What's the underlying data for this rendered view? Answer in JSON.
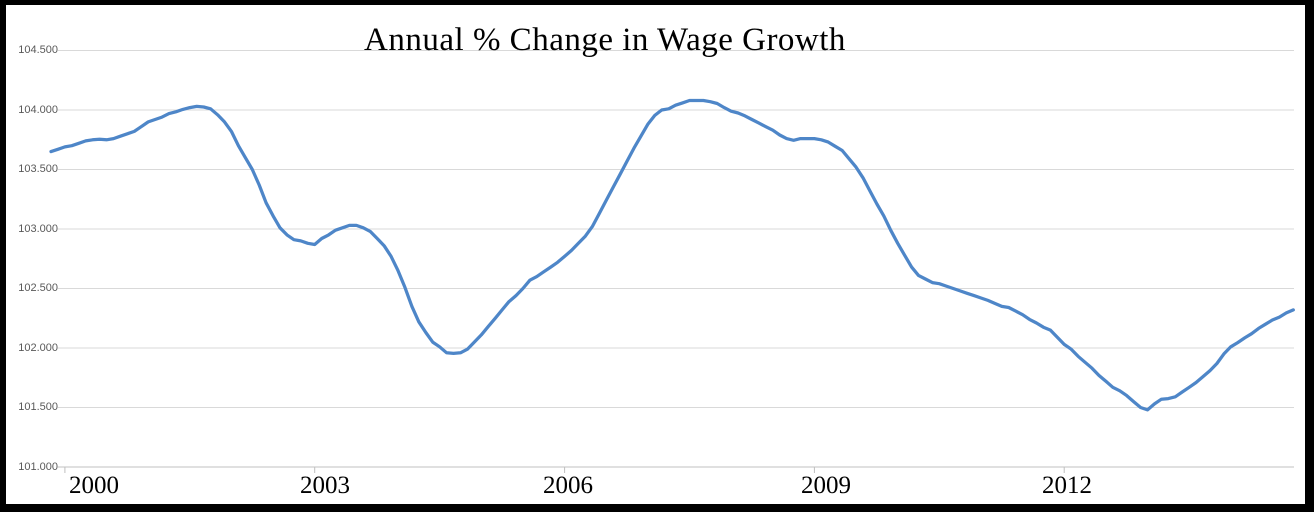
{
  "title": "Annual % Change in Wage Growth",
  "y_axis": {
    "tick_labels": [
      "104.500",
      "104.000",
      "103.500",
      "103.000",
      "102.500",
      "102.000",
      "101.500",
      "101.000"
    ],
    "min": 101.0,
    "max": 104.5,
    "step": 0.5
  },
  "x_axis": {
    "tick_labels": [
      "2000",
      "2003",
      "2006",
      "2009",
      "2012"
    ]
  },
  "colors": {
    "line": "#4E86C8",
    "gridline": "#D9D9D9",
    "axis_line": "#C0C0C0",
    "tick_mark": "#BFBFBF",
    "y_label_text": "#595959",
    "x_label_text": "#000000",
    "title_text": "#000000",
    "frame": "#000000",
    "background": "#FFFFFF"
  },
  "chart_data": {
    "type": "line",
    "title": "Annual % Change in Wage Growth",
    "xlabel": "",
    "ylabel": "",
    "ylim": [
      101.0,
      104.5
    ],
    "x_tick_labels": [
      "2000",
      "2003",
      "2006",
      "2009",
      "2012"
    ],
    "frequency": "monthly",
    "x_start": "1999-11",
    "x_end": "2014-10",
    "grid": true,
    "legend": false,
    "values": [
      103.65,
      103.67,
      103.69,
      103.7,
      103.72,
      103.74,
      103.75,
      103.755,
      103.75,
      103.76,
      103.78,
      103.8,
      103.82,
      103.86,
      103.9,
      103.92,
      103.94,
      103.97,
      103.985,
      104.005,
      104.02,
      104.03,
      104.025,
      104.01,
      103.96,
      103.9,
      103.82,
      103.7,
      103.6,
      103.5,
      103.37,
      103.22,
      103.11,
      103.01,
      102.95,
      102.91,
      102.9,
      102.88,
      102.87,
      102.92,
      102.95,
      102.99,
      103.01,
      103.03,
      103.03,
      103.01,
      102.98,
      102.92,
      102.86,
      102.77,
      102.65,
      102.51,
      102.35,
      102.22,
      102.13,
      102.05,
      102.01,
      101.96,
      101.955,
      101.96,
      101.99,
      102.05,
      102.11,
      102.18,
      102.25,
      102.32,
      102.39,
      102.44,
      102.5,
      102.57,
      102.6,
      102.64,
      102.68,
      102.72,
      102.77,
      102.82,
      102.88,
      102.94,
      103.02,
      103.13,
      103.24,
      103.35,
      103.46,
      103.57,
      103.68,
      103.78,
      103.88,
      103.955,
      104.0,
      104.01,
      104.04,
      104.06,
      104.08,
      104.08,
      104.08,
      104.07,
      104.055,
      104.02,
      103.99,
      103.975,
      103.95,
      103.92,
      103.89,
      103.86,
      103.83,
      103.79,
      103.76,
      103.745,
      103.76,
      103.76,
      103.76,
      103.75,
      103.73,
      103.695,
      103.66,
      103.59,
      103.52,
      103.43,
      103.32,
      103.21,
      103.11,
      102.99,
      102.88,
      102.78,
      102.68,
      102.61,
      102.58,
      102.55,
      102.54,
      102.52,
      102.5,
      102.48,
      102.46,
      102.44,
      102.42,
      102.4,
      102.375,
      102.35,
      102.34,
      102.31,
      102.28,
      102.24,
      102.21,
      102.175,
      102.15,
      102.09,
      102.03,
      101.99,
      101.93,
      101.88,
      101.83,
      101.77,
      101.72,
      101.67,
      101.64,
      101.6,
      101.55,
      101.5,
      101.48,
      101.53,
      101.57,
      101.575,
      101.59,
      101.63,
      101.67,
      101.71,
      101.76,
      101.81,
      101.87,
      101.95,
      102.01,
      102.045,
      102.085,
      102.12,
      102.165,
      102.2,
      102.235,
      102.26,
      102.295,
      102.32
    ]
  }
}
